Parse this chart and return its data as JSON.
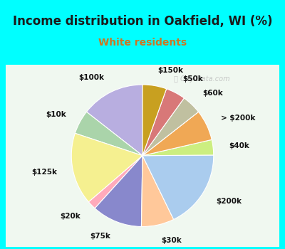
{
  "title": "Income distribution in Oakfield, WI (%)",
  "subtitle": "White residents",
  "title_color": "#1a1a1a",
  "subtitle_color": "#cc7722",
  "top_bg": "#00ffff",
  "chart_bg": "#e0f0e8",
  "watermark": "City-Data.com",
  "labels": [
    "$100k",
    "$10k",
    "$125k",
    "$20k",
    "$75k",
    "$30k",
    "$200k",
    "$40k",
    "> $200k",
    "$60k",
    "$50k",
    "$150k"
  ],
  "values": [
    14.5,
    5.5,
    16.5,
    2.0,
    11.5,
    7.5,
    18.0,
    3.5,
    7.0,
    4.5,
    4.5,
    5.5
  ],
  "colors": [
    "#b8aee0",
    "#aad4aa",
    "#f5f090",
    "#ffaabb",
    "#8888cc",
    "#ffc89a",
    "#aaccee",
    "#ccee80",
    "#f0a855",
    "#c0c0a0",
    "#d87878",
    "#c8a020"
  ],
  "label_fontsize": 7.5,
  "title_fontsize": 12,
  "subtitle_fontsize": 10,
  "startangle": 90
}
